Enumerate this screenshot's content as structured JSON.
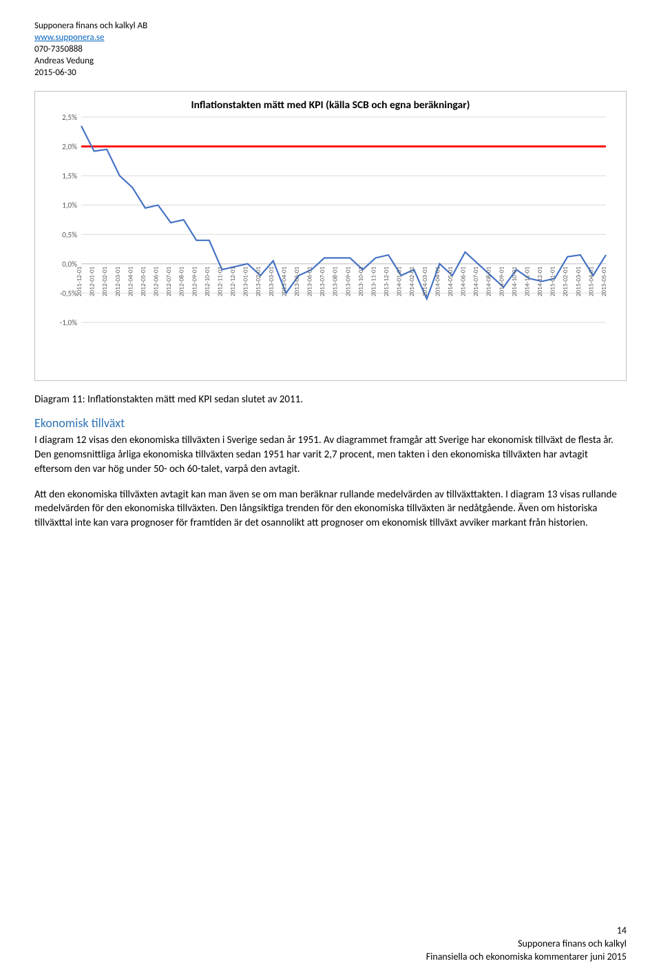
{
  "header": {
    "company": "Supponera finans och kalkyl AB",
    "url": "www.supponera.se",
    "phone": "070-7350888",
    "name": "Andreas Vedung",
    "date": "2015-06-30"
  },
  "chart": {
    "type": "line",
    "title": "Inflationstakten mätt med KPI (källa SCB och egna beräkningar)",
    "background_color": "#ffffff",
    "grid_color": "#d9d9d9",
    "line_color": "#4472c4",
    "line_width": 2.2,
    "target_color": "#ff0000",
    "target_width": 2.8,
    "target_value": 2.0,
    "axis_label_color": "#595959",
    "ylim": [
      -1.0,
      2.5
    ],
    "ytick_step": 0.5,
    "ytick_labels": [
      "-1,0%",
      "-0,5%",
      "0,0%",
      "0,5%",
      "1,0%",
      "1,5%",
      "2,0%",
      "2,5%"
    ],
    "x_dates": [
      "2011-12-01",
      "2012-01-01",
      "2012-02-01",
      "2012-03-01",
      "2012-04-01",
      "2012-05-01",
      "2012-06-01",
      "2012-07-01",
      "2012-08-01",
      "2012-09-01",
      "2012-10-01",
      "2012-11-01",
      "2012-12-01",
      "2013-01-01",
      "2013-02-01",
      "2013-03-01",
      "2013-04-01",
      "2013-05-01",
      "2013-06-01",
      "2013-07-01",
      "2013-08-01",
      "2013-09-01",
      "2013-10-01",
      "2013-11-01",
      "2013-12-01",
      "2014-01-01",
      "2014-02-01",
      "2014-03-01",
      "2014-04-01",
      "2014-05-01",
      "2014-06-01",
      "2014-07-01",
      "2014-08-01",
      "2014-09-01",
      "2014-10-01",
      "2014-11-01",
      "2014-12-01",
      "2015-01-01",
      "2015-02-01",
      "2015-03-01",
      "2015-04-01",
      "2015-05-01"
    ],
    "values": [
      2.35,
      1.92,
      1.95,
      1.5,
      1.3,
      0.95,
      1.0,
      0.7,
      0.75,
      0.4,
      0.4,
      -0.1,
      -0.05,
      0.0,
      -0.2,
      0.05,
      -0.5,
      -0.2,
      -0.1,
      0.1,
      0.1,
      0.1,
      -0.1,
      0.1,
      0.15,
      -0.2,
      -0.1,
      -0.6,
      0.0,
      -0.2,
      0.2,
      0.0,
      -0.2,
      -0.4,
      -0.1,
      -0.25,
      -0.3,
      -0.25,
      0.12,
      0.15,
      -0.2,
      0.15
    ]
  },
  "caption": "Diagram 11: Inflationstakten mätt med KPI sedan slutet av 2011.",
  "section_heading": "Ekonomisk tillväxt",
  "para1": "I diagram 12 visas den ekonomiska tillväxten i Sverige sedan år 1951. Av diagrammet framgår att Sverige har ekonomisk tillväxt de flesta år. Den genomsnittliga årliga ekonomiska tillväxten sedan 1951 har varit 2,7 procent, men takten i den ekonomiska tillväxten har avtagit eftersom den var hög under 50- och 60-talet, varpå den avtagit.",
  "para2": "Att den ekonomiska tillväxten avtagit kan man även se om man beräknar rullande medelvärden av tillväxttakten. I diagram 13 visas rullande medelvärden för den ekonomiska tillväxten. Den långsiktiga trenden för den ekonomiska tillväxten är nedåtgående. Även om historiska tillväxttal inte kan vara prognoser för framtiden är det osannolikt att prognoser om ekonomisk tillväxt avviker markant från historien.",
  "footer": {
    "page": "14",
    "line1": "Supponera finans och kalkyl",
    "line2": "Finansiella och ekonomiska kommentarer juni 2015"
  }
}
